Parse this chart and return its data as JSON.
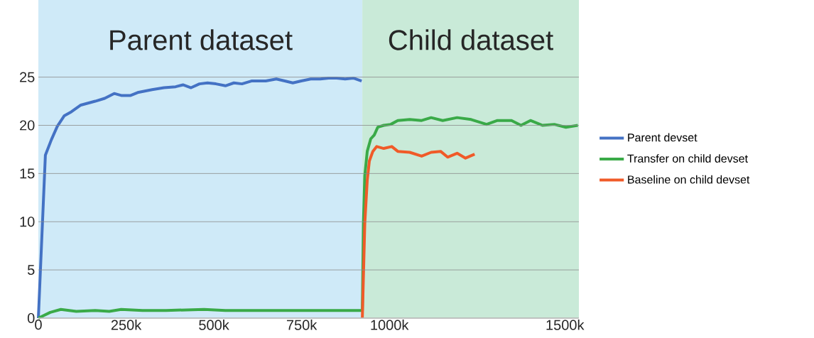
{
  "chart_data": {
    "type": "line",
    "xlim": [
      0,
      1540000
    ],
    "ylim": [
      0,
      33
    ],
    "xticks": [
      0,
      {
        "value": 250000,
        "label": "250k"
      },
      {
        "value": 500000,
        "label": "500k"
      },
      {
        "value": 750000,
        "label": "750k"
      },
      {
        "value": 1000000,
        "label": "1000k"
      },
      {
        "value": 1500000,
        "label": "1500k"
      }
    ],
    "yticks": [
      0,
      5,
      10,
      15,
      20,
      25
    ],
    "grid": "y",
    "legend": "right",
    "bands": [
      {
        "axis": "x",
        "from": 0,
        "to": 923000,
        "label": "Parent dataset",
        "color": "#cfeaf8"
      },
      {
        "axis": "x",
        "from": 923000,
        "to": 1540000,
        "label": "Child dataset",
        "color": "#c9ead8"
      }
    ],
    "series": [
      {
        "name": "Parent devset",
        "color": "#4472c4",
        "x": [
          0,
          20000,
          37000,
          54000,
          74000,
          94000,
          121000,
          162000,
          189000,
          216000,
          236000,
          263000,
          283000,
          324000,
          358000,
          391000,
          412000,
          435000,
          459000,
          482000,
          506000,
          533000,
          557000,
          580000,
          607000,
          648000,
          678000,
          702000,
          725000,
          749000,
          776000,
          803000,
          827000,
          850000,
          874000,
          897000,
          921000
        ],
        "values": [
          0,
          16.9,
          18.5,
          19.9,
          21.0,
          21.4,
          22.1,
          22.5,
          22.8,
          23.3,
          23.1,
          23.1,
          23.4,
          23.7,
          23.9,
          24.0,
          24.2,
          23.9,
          24.3,
          24.4,
          24.3,
          24.1,
          24.4,
          24.3,
          24.6,
          24.6,
          24.8,
          24.6,
          24.4,
          24.6,
          24.8,
          24.8,
          24.9,
          24.9,
          24.8,
          24.9,
          24.6
        ]
      },
      {
        "name": "Transfer on child devset",
        "color": "#3aaa48",
        "x": [
          0,
          34000,
          64000,
          108000,
          162000,
          202000,
          236000,
          297000,
          364000,
          472000,
          533000,
          634000,
          769000,
          923000,
          926000,
          930000,
          937000,
          947000,
          957000,
          967000,
          984000,
          1004000,
          1024000,
          1058000,
          1092000,
          1119000,
          1152000,
          1193000,
          1233000,
          1277000,
          1308000,
          1348000,
          1375000,
          1402000,
          1436000,
          1470000,
          1503000,
          1537000
        ],
        "values": [
          0,
          0.6,
          0.9,
          0.7,
          0.8,
          0.7,
          0.9,
          0.8,
          0.8,
          0.9,
          0.8,
          0.8,
          0.8,
          0.8,
          9.8,
          14.8,
          17.3,
          18.6,
          19.0,
          19.8,
          20.0,
          20.1,
          20.5,
          20.6,
          20.5,
          20.8,
          20.5,
          20.8,
          20.6,
          20.1,
          20.5,
          20.5,
          20.0,
          20.5,
          20.0,
          20.1,
          19.8,
          20.0
        ]
      },
      {
        "name": "Baseline on child devset",
        "color": "#f05a28",
        "x": [
          923000,
          930000,
          937000,
          943000,
          953000,
          964000,
          984000,
          1007000,
          1024000,
          1058000,
          1092000,
          1119000,
          1146000,
          1166000,
          1193000,
          1217000,
          1243000
        ],
        "values": [
          0,
          9.8,
          14.3,
          16.3,
          17.3,
          17.8,
          17.6,
          17.8,
          17.3,
          17.2,
          16.8,
          17.2,
          17.3,
          16.7,
          17.1,
          16.6,
          17.0
        ]
      }
    ]
  }
}
